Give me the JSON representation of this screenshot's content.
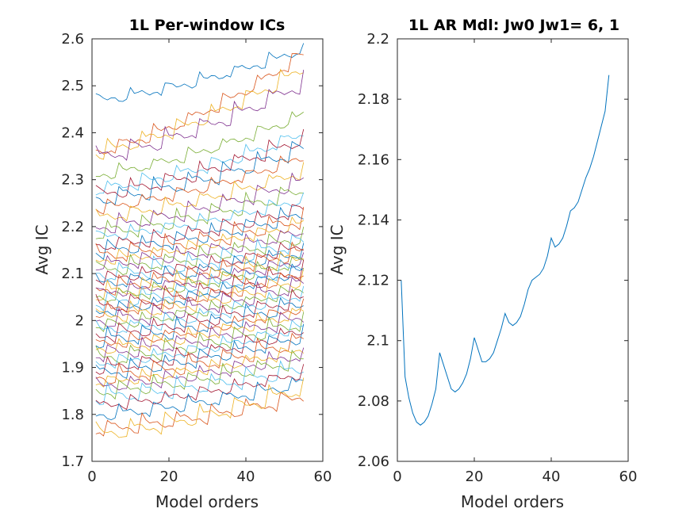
{
  "chart_data": [
    {
      "type": "line",
      "title": "1L Per-window ICs",
      "xlabel": "Model orders",
      "ylabel": "Avg IC",
      "xlim": [
        0,
        60
      ],
      "ylim": [
        1.7,
        2.6
      ],
      "xticks": [
        0,
        20,
        40,
        60
      ],
      "xtick_labels": [
        "0",
        "20",
        "40",
        "60"
      ],
      "yticks": [
        1.7,
        1.8,
        1.9,
        2.0,
        2.1,
        2.2,
        2.3,
        2.4,
        2.5,
        2.6
      ],
      "ytick_labels": [
        "1.7",
        "1.8",
        "1.9",
        "2",
        "2.1",
        "2.2",
        "2.3",
        "2.4",
        "2.5",
        "2.6"
      ],
      "grid": false,
      "x_start": 1,
      "x_end": 55,
      "colors": [
        "#0072BD",
        "#D95319",
        "#EDB120",
        "#7E2F8E",
        "#77AC30",
        "#4DBEEE",
        "#A2142F"
      ],
      "series_start_end": [
        [
          2.47,
          2.58
        ],
        [
          2.36,
          2.57
        ],
        [
          2.36,
          2.54
        ],
        [
          2.35,
          2.51
        ],
        [
          2.31,
          2.44
        ],
        [
          2.28,
          2.4
        ],
        [
          2.27,
          2.39
        ],
        [
          2.26,
          2.37
        ],
        [
          2.24,
          2.35
        ],
        [
          2.22,
          2.32
        ],
        [
          2.2,
          2.3
        ],
        [
          2.19,
          2.28
        ],
        [
          2.18,
          2.26
        ],
        [
          2.16,
          2.24
        ],
        [
          2.15,
          2.23
        ],
        [
          2.14,
          2.22
        ],
        [
          2.13,
          2.21
        ],
        [
          2.12,
          2.19
        ],
        [
          2.11,
          2.18
        ],
        [
          2.1,
          2.17
        ],
        [
          2.09,
          2.16
        ],
        [
          2.08,
          2.15
        ],
        [
          2.07,
          2.15
        ],
        [
          2.06,
          2.14
        ],
        [
          2.06,
          2.13
        ],
        [
          2.05,
          2.13
        ],
        [
          2.04,
          2.12
        ],
        [
          2.03,
          2.11
        ],
        [
          2.02,
          2.11
        ],
        [
          2.02,
          2.1
        ],
        [
          2.01,
          2.09
        ],
        [
          2.0,
          2.08
        ],
        [
          1.99,
          2.07
        ],
        [
          1.98,
          2.06
        ],
        [
          1.97,
          2.05
        ],
        [
          1.96,
          2.04
        ],
        [
          1.95,
          2.03
        ],
        [
          1.94,
          2.02
        ],
        [
          1.93,
          2.01
        ],
        [
          1.92,
          2.0
        ],
        [
          1.91,
          1.99
        ],
        [
          1.9,
          1.98
        ],
        [
          1.89,
          1.97
        ],
        [
          1.88,
          1.96
        ],
        [
          1.87,
          1.94
        ],
        [
          1.86,
          1.93
        ],
        [
          1.85,
          1.92
        ],
        [
          1.84,
          1.9
        ],
        [
          1.82,
          1.89
        ],
        [
          1.8,
          1.87
        ],
        [
          1.77,
          1.84
        ],
        [
          1.76,
          1.86
        ]
      ]
    },
    {
      "type": "line",
      "title": "1L AR Mdl: Jw0 Jw1= 6, 1",
      "xlabel": "Model orders",
      "ylabel": "Avg IC",
      "xlim": [
        0,
        60
      ],
      "ylim": [
        2.06,
        2.2
      ],
      "xticks": [
        0,
        20,
        40,
        60
      ],
      "xtick_labels": [
        "0",
        "20",
        "40",
        "60"
      ],
      "yticks": [
        2.06,
        2.08,
        2.1,
        2.12,
        2.14,
        2.16,
        2.18,
        2.2
      ],
      "ytick_labels": [
        "2.06",
        "2.08",
        "2.1",
        "2.12",
        "2.14",
        "2.16",
        "2.18",
        "2.2"
      ],
      "grid": false,
      "color": "#0072BD",
      "series": [
        {
          "x": [
            1,
            2,
            3,
            4,
            5,
            6,
            7,
            8,
            9,
            10,
            11,
            12,
            13,
            14,
            15,
            16,
            17,
            18,
            19,
            20,
            21,
            22,
            23,
            24,
            25,
            26,
            27,
            28,
            29,
            30,
            31,
            32,
            33,
            34,
            35,
            36,
            37,
            38,
            39,
            40,
            41,
            42,
            43,
            44,
            45,
            46,
            47,
            48,
            49,
            50,
            51,
            52,
            53,
            54,
            55
          ],
          "values": [
            2.12,
            2.088,
            2.081,
            2.076,
            2.073,
            2.072,
            2.073,
            2.075,
            2.079,
            2.084,
            2.096,
            2.092,
            2.088,
            2.084,
            2.083,
            2.084,
            2.086,
            2.089,
            2.094,
            2.101,
            2.097,
            2.093,
            2.093,
            2.094,
            2.096,
            2.1,
            2.104,
            2.109,
            2.106,
            2.105,
            2.106,
            2.108,
            2.112,
            2.117,
            2.12,
            2.121,
            2.122,
            2.124,
            2.128,
            2.134,
            2.131,
            2.132,
            2.134,
            2.138,
            2.143,
            2.144,
            2.146,
            2.15,
            2.154,
            2.157,
            2.161,
            2.166,
            2.171,
            2.176,
            2.188
          ]
        }
      ]
    }
  ]
}
